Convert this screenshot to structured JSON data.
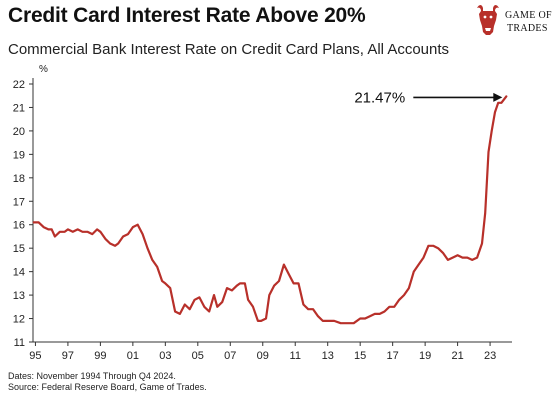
{
  "header": {
    "title": "Credit Card Interest Rate Above 20%",
    "subtitle": "Commercial Bank Interest Rate on Credit Card Plans, All Accounts"
  },
  "logo": {
    "line1": "GAME OF",
    "line2": "TRADES",
    "color": "#b8302a"
  },
  "footnotes": {
    "dates": "Dates: November 1994 Through Q4 2024.",
    "source": "Source: Federal Reserve Board, Game of Trades."
  },
  "chart_data": {
    "type": "line",
    "title": "Commercial Bank Interest Rate on Credit Card Plans, All Accounts",
    "ylabel": "%",
    "xlabel": "",
    "ylim": [
      11,
      22
    ],
    "xlim": [
      1994.85,
      2024.35
    ],
    "y_ticks": [
      "11",
      "12",
      "13",
      "14",
      "15",
      "16",
      "17",
      "18",
      "19",
      "20",
      "21",
      "22"
    ],
    "x_ticks": [
      {
        "label": "95",
        "x": 1995.0
      },
      {
        "label": "97",
        "x": 1997.0
      },
      {
        "label": "99",
        "x": 1999.0
      },
      {
        "label": "01",
        "x": 2001.0
      },
      {
        "label": "03",
        "x": 2003.0
      },
      {
        "label": "05",
        "x": 2005.0
      },
      {
        "label": "07",
        "x": 2007.0
      },
      {
        "label": "09",
        "x": 2009.0
      },
      {
        "label": "11",
        "x": 2011.0
      },
      {
        "label": "13",
        "x": 2013.0
      },
      {
        "label": "15",
        "x": 2015.0
      },
      {
        "label": "17",
        "x": 2017.0
      },
      {
        "label": "19",
        "x": 2019.0
      },
      {
        "label": "21",
        "x": 2021.0
      },
      {
        "label": "23",
        "x": 2023.0
      }
    ],
    "grid": false,
    "line_color": "#b8302a",
    "annotation": {
      "text": "21.47%",
      "x": 2024.0,
      "y": 21.47
    },
    "series": [
      {
        "name": "",
        "x": [
          1994.9,
          1995.2,
          1995.5,
          1995.8,
          1996.0,
          1996.2,
          1996.5,
          1996.8,
          1997.0,
          1997.3,
          1997.6,
          1997.9,
          1998.2,
          1998.5,
          1998.8,
          1999.0,
          1999.3,
          1999.6,
          1999.9,
          2000.1,
          2000.4,
          2000.7,
          2001.0,
          2001.3,
          2001.6,
          2001.9,
          2002.2,
          2002.5,
          2002.8,
          2003.0,
          2003.3,
          2003.6,
          2003.9,
          2004.2,
          2004.5,
          2004.8,
          2005.1,
          2005.4,
          2005.7,
          2006.0,
          2006.2,
          2006.5,
          2006.8,
          2007.1,
          2007.4,
          2007.6,
          2007.9,
          2008.1,
          2008.4,
          2008.7,
          2008.9,
          2009.2,
          2009.4,
          2009.7,
          2010.0,
          2010.3,
          2010.6,
          2010.9,
          2011.2,
          2011.5,
          2011.8,
          2012.1,
          2012.4,
          2012.7,
          2013.0,
          2013.4,
          2013.8,
          2014.2,
          2014.6,
          2015.0,
          2015.3,
          2015.6,
          2015.9,
          2016.2,
          2016.5,
          2016.8,
          2017.1,
          2017.4,
          2017.7,
          2018.0,
          2018.3,
          2018.6,
          2018.9,
          2019.2,
          2019.5,
          2019.8,
          2020.1,
          2020.4,
          2020.7,
          2021.0,
          2021.3,
          2021.6,
          2021.9,
          2022.2,
          2022.5,
          2022.7,
          2022.9,
          2023.1,
          2023.3,
          2023.5,
          2023.7,
          2024.0
        ],
        "values": [
          16.1,
          16.1,
          15.9,
          15.8,
          15.8,
          15.5,
          15.7,
          15.7,
          15.8,
          15.7,
          15.8,
          15.7,
          15.7,
          15.6,
          15.8,
          15.7,
          15.4,
          15.2,
          15.1,
          15.2,
          15.5,
          15.6,
          15.9,
          16.0,
          15.6,
          15.0,
          14.5,
          14.2,
          13.6,
          13.5,
          13.3,
          12.3,
          12.2,
          12.6,
          12.4,
          12.8,
          12.9,
          12.5,
          12.3,
          13.0,
          12.5,
          12.7,
          13.3,
          13.2,
          13.4,
          13.5,
          13.5,
          12.8,
          12.5,
          11.9,
          11.9,
          12.0,
          13.0,
          13.4,
          13.6,
          14.3,
          13.9,
          13.5,
          13.5,
          12.6,
          12.4,
          12.4,
          12.1,
          11.9,
          11.9,
          11.9,
          11.8,
          11.8,
          11.8,
          12.0,
          12.0,
          12.1,
          12.2,
          12.2,
          12.3,
          12.5,
          12.5,
          12.8,
          13.0,
          13.3,
          14.0,
          14.3,
          14.6,
          15.1,
          15.1,
          15.0,
          14.8,
          14.5,
          14.6,
          14.7,
          14.6,
          14.6,
          14.5,
          14.6,
          15.2,
          16.5,
          19.1,
          20.0,
          20.8,
          21.2,
          21.2,
          21.47
        ]
      }
    ]
  }
}
